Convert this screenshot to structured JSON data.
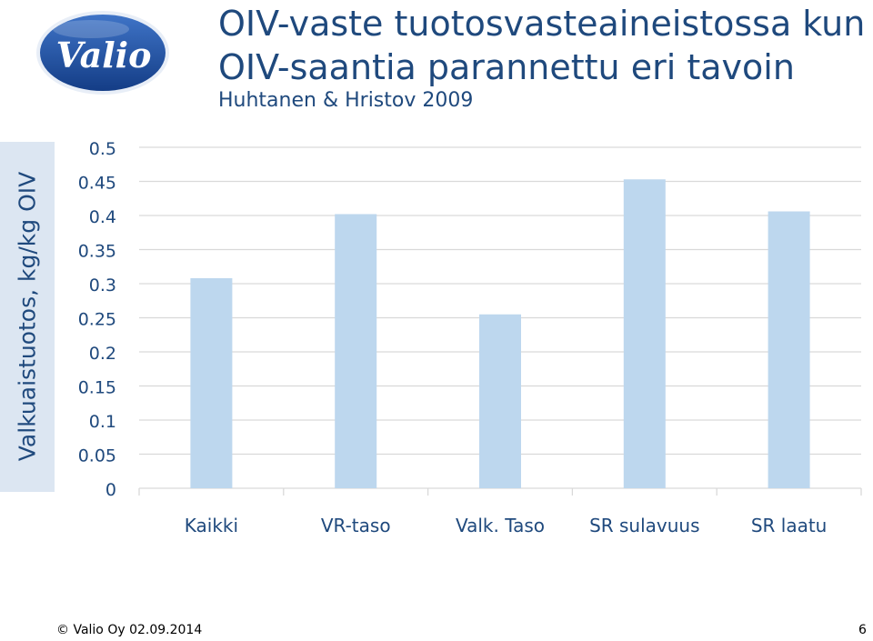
{
  "brand": {
    "logo_text": "Valio",
    "brand_blue": "#1F4E9E"
  },
  "header": {
    "title_line1": "OIV-vaste tuotosvasteaineistossa kun",
    "title_line2": "OIV-saantia parannettu eri tavoin",
    "subtitle": "Huhtanen & Hristov 2009"
  },
  "chart_data": {
    "type": "bar",
    "title": "",
    "ylabel": "Valkuaistuotos, kg/kg OIV",
    "xlabel": "",
    "categories": [
      "Kaikki",
      "VR-taso",
      "Valk. Taso",
      "SR sulavuus",
      "SR laatu"
    ],
    "values": [
      0.308,
      0.402,
      0.255,
      0.453,
      0.406
    ],
    "ylim": [
      0,
      0.5
    ],
    "yticks": [
      "0",
      "0.05",
      "0.1",
      "0.15",
      "0.2",
      "0.25",
      "0.3",
      "0.35",
      "0.4",
      "0.45",
      "0.5"
    ],
    "grid": true,
    "legend": "none",
    "bar_color": "#BDD7EE",
    "grid_color": "#D9D9D9",
    "tick_color": "#1F497D",
    "category_color": "#1F497D"
  },
  "footer": {
    "copyright": "© Valio Oy 02.09.2014",
    "page_number": "6"
  }
}
